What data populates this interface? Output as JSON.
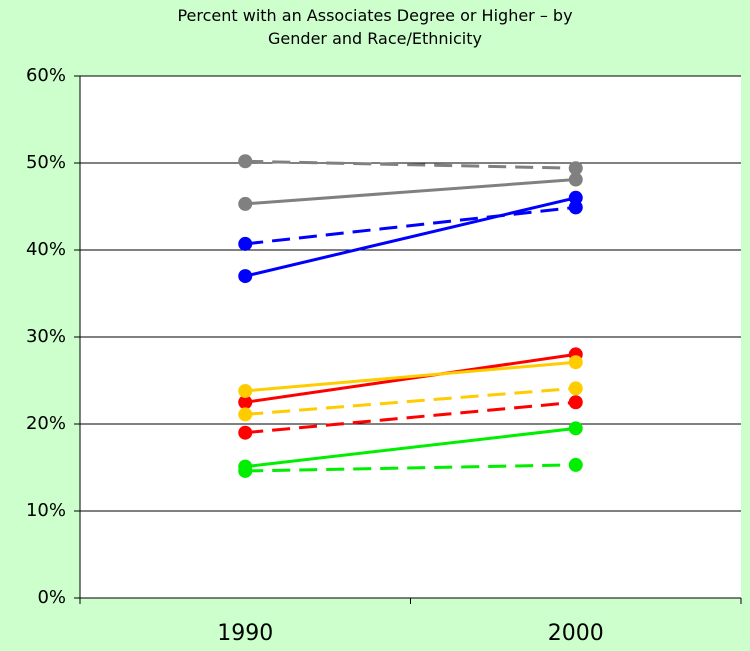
{
  "chart_data": {
    "type": "line",
    "title": "Percent with an Associates Degree or Higher – by Gender and Race/Ethnicity",
    "categories": [
      "1990",
      "2000"
    ],
    "series": [
      {
        "color": "#808080",
        "dashed": true,
        "values": [
          50.2,
          49.4
        ]
      },
      {
        "color": "#808080",
        "dashed": false,
        "values": [
          45.3,
          48.1
        ]
      },
      {
        "color": "#0000ff",
        "dashed": true,
        "values": [
          40.7,
          44.9
        ]
      },
      {
        "color": "#0000ff",
        "dashed": false,
        "values": [
          37.0,
          46.0
        ]
      },
      {
        "color": "#ff0000",
        "dashed": false,
        "values": [
          22.5,
          28.0
        ]
      },
      {
        "color": "#ff0000",
        "dashed": true,
        "values": [
          19.0,
          22.5
        ]
      },
      {
        "color": "#ffcc00",
        "dashed": false,
        "values": [
          23.8,
          27.1
        ]
      },
      {
        "color": "#ffcc00",
        "dashed": true,
        "values": [
          21.1,
          24.1
        ]
      },
      {
        "color": "#00ee00",
        "dashed": false,
        "values": [
          15.1,
          19.5
        ]
      },
      {
        "color": "#00ee00",
        "dashed": true,
        "values": [
          14.6,
          15.3
        ]
      }
    ],
    "ylim": [
      0,
      60
    ],
    "yticks": [
      {
        "value": 0,
        "label": "0%"
      },
      {
        "value": 10,
        "label": "10%"
      },
      {
        "value": 20,
        "label": "20%"
      },
      {
        "value": 30,
        "label": "30%"
      },
      {
        "value": 40,
        "label": "40%"
      },
      {
        "value": 50,
        "label": "50%"
      },
      {
        "value": 60,
        "label": "60%"
      }
    ],
    "grid": true
  }
}
